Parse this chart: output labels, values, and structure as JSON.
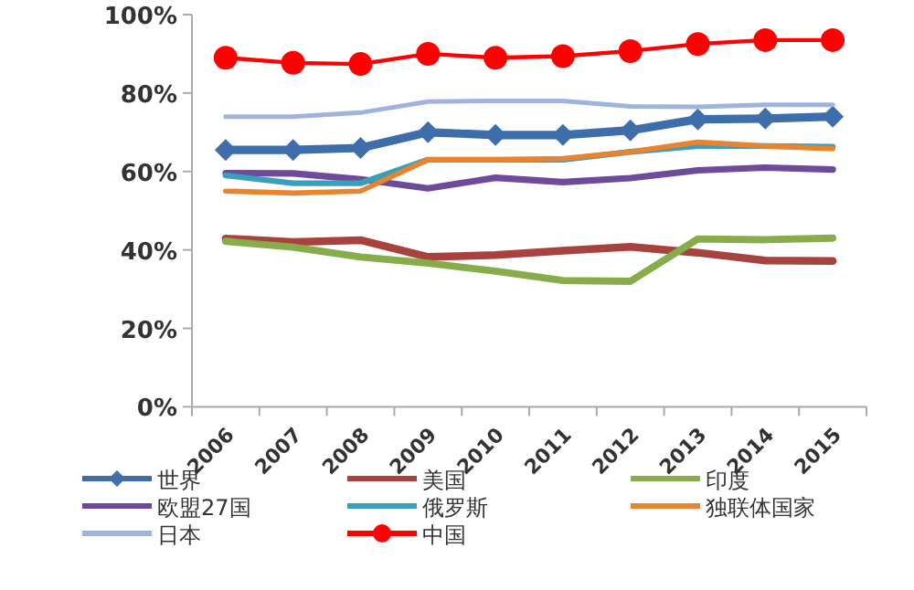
{
  "chart_data": {
    "type": "line",
    "categories": [
      "2006",
      "2007",
      "2008",
      "2009",
      "2010",
      "2011",
      "2012",
      "2013",
      "2014",
      "2015"
    ],
    "series": [
      {
        "name": "世界",
        "color": "#3e6dab",
        "marker": "diamond",
        "values": [
          65.5,
          65.5,
          66,
          70,
          69.3,
          69.3,
          70.5,
          73.3,
          73.5,
          74
        ]
      },
      {
        "name": "美国",
        "color": "#a8423f",
        "marker": "none",
        "values": [
          42.9,
          42,
          42.5,
          38.2,
          38.7,
          39.8,
          40.8,
          39.3,
          37.3,
          37.2
        ]
      },
      {
        "name": "印度",
        "color": "#86ad4a",
        "marker": "none",
        "values": [
          42.2,
          40.7,
          38.2,
          36.6,
          34.6,
          32.2,
          32,
          42.8,
          42.6,
          43
        ]
      },
      {
        "name": "欧盟27国",
        "color": "#6e4a9a",
        "marker": "none",
        "values": [
          59.6,
          59.5,
          58,
          55.7,
          58.4,
          57.3,
          58.3,
          60.3,
          61,
          60.5
        ]
      },
      {
        "name": "俄罗斯",
        "color": "#3a9fb8",
        "marker": "none",
        "values": [
          59,
          57,
          57,
          63,
          63,
          63,
          65,
          66.5,
          66.5,
          66.3
        ]
      },
      {
        "name": "独联体国家",
        "color": "#e8842f",
        "marker": "none",
        "values": [
          55,
          54.5,
          55,
          63,
          63,
          63.3,
          65,
          67.5,
          66.5,
          65.8
        ]
      },
      {
        "name": "日本",
        "color": "#9fb4dc",
        "marker": "none",
        "values": [
          74,
          74,
          75,
          77.8,
          78,
          78,
          76.6,
          76.5,
          77,
          77
        ]
      },
      {
        "name": "中国",
        "color": "#ff0000",
        "marker": "circle",
        "values": [
          89,
          87.7,
          87.4,
          90,
          89,
          89.4,
          90.7,
          92.5,
          93.5,
          93.5
        ]
      }
    ],
    "ylim": [
      0,
      100
    ],
    "yticks": [
      {
        "value": 0,
        "label": "0%"
      },
      {
        "value": 20,
        "label": "20%"
      },
      {
        "value": 40,
        "label": "40%"
      },
      {
        "value": 60,
        "label": "60%"
      },
      {
        "value": 80,
        "label": "80%"
      },
      {
        "value": 100,
        "label": "100%"
      }
    ],
    "legend": "bottom"
  }
}
